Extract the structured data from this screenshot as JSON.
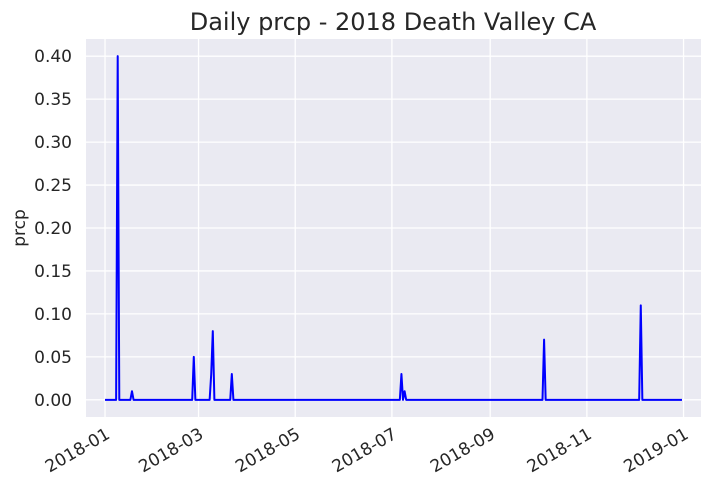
{
  "chart_data": {
    "type": "line",
    "title": "Daily prcp - 2018 Death Valley CA",
    "xlabel": "",
    "ylabel": "prcp",
    "grid": true,
    "line_color": "#0000ff",
    "background_color": "#eaeaf2",
    "x_range": [
      "2017-12-20",
      "2019-01-12"
    ],
    "ylim": [
      -0.02,
      0.42
    ],
    "x_ticks": [
      "2018-01",
      "2018-03",
      "2018-05",
      "2018-07",
      "2018-09",
      "2018-11",
      "2019-01"
    ],
    "y_ticks": [
      "0.00",
      "0.05",
      "0.10",
      "0.15",
      "0.20",
      "0.25",
      "0.30",
      "0.35",
      "0.40"
    ],
    "series": [
      {
        "points": [
          [
            "2018-01-01",
            0.0
          ],
          [
            "2018-01-08",
            0.0
          ],
          [
            "2018-01-09",
            0.4
          ],
          [
            "2018-01-10",
            0.0
          ],
          [
            "2018-01-17",
            0.0
          ],
          [
            "2018-01-18",
            0.01
          ],
          [
            "2018-01-19",
            0.0
          ],
          [
            "2018-02-25",
            0.0
          ],
          [
            "2018-02-26",
            0.05
          ],
          [
            "2018-02-27",
            0.0
          ],
          [
            "2018-03-08",
            0.0
          ],
          [
            "2018-03-09",
            0.03
          ],
          [
            "2018-03-10",
            0.08
          ],
          [
            "2018-03-11",
            0.0
          ],
          [
            "2018-03-21",
            0.0
          ],
          [
            "2018-03-22",
            0.03
          ],
          [
            "2018-03-23",
            0.0
          ],
          [
            "2018-07-06",
            0.0
          ],
          [
            "2018-07-07",
            0.03
          ],
          [
            "2018-07-08",
            0.0
          ],
          [
            "2018-07-09",
            0.01
          ],
          [
            "2018-07-10",
            0.0
          ],
          [
            "2018-10-04",
            0.0
          ],
          [
            "2018-10-05",
            0.07
          ],
          [
            "2018-10-06",
            0.0
          ],
          [
            "2018-12-04",
            0.0
          ],
          [
            "2018-12-05",
            0.11
          ],
          [
            "2018-12-06",
            0.0
          ],
          [
            "2018-12-31",
            0.0
          ]
        ]
      }
    ]
  }
}
